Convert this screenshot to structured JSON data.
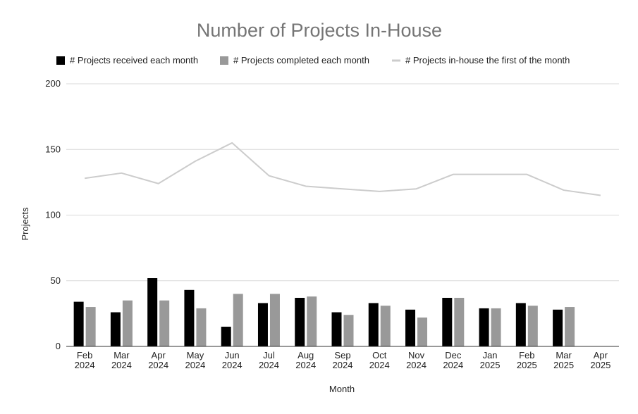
{
  "chart_data": {
    "type": "bar",
    "title": "Number of Projects In-House",
    "xlabel": "Month",
    "ylabel": "Projects",
    "ylim": [
      0,
      200
    ],
    "yticks": [
      0,
      50,
      100,
      150,
      200
    ],
    "grid": true,
    "legend_position": "top",
    "categories": [
      [
        "Feb",
        "2024"
      ],
      [
        "Mar",
        "2024"
      ],
      [
        "Apr",
        "2024"
      ],
      [
        "May",
        "2024"
      ],
      [
        "Jun",
        "2024"
      ],
      [
        "Jul",
        "2024"
      ],
      [
        "Aug",
        "2024"
      ],
      [
        "Sep",
        "2024"
      ],
      [
        "Oct",
        "2024"
      ],
      [
        "Nov",
        "2024"
      ],
      [
        "Dec",
        "2024"
      ],
      [
        "Jan",
        "2025"
      ],
      [
        "Feb",
        "2025"
      ],
      [
        "Mar",
        "2025"
      ],
      [
        "Apr",
        "2025"
      ]
    ],
    "series": [
      {
        "name": "# Projects received each month",
        "kind": "bar",
        "color": "#000000",
        "values": [
          34,
          26,
          52,
          43,
          15,
          33,
          37,
          26,
          33,
          28,
          37,
          29,
          33,
          28,
          null
        ]
      },
      {
        "name": "# Projects completed each month",
        "kind": "bar",
        "color": "#999999",
        "values": [
          30,
          35,
          35,
          29,
          40,
          40,
          38,
          24,
          31,
          22,
          37,
          29,
          31,
          30,
          null
        ]
      },
      {
        "name": "# Projects in-house the first of the month",
        "kind": "line",
        "color": "#cccccc",
        "values": [
          128,
          132,
          124,
          141,
          155,
          130,
          122,
          120,
          118,
          120,
          131,
          131,
          131,
          119,
          115
        ]
      }
    ]
  }
}
